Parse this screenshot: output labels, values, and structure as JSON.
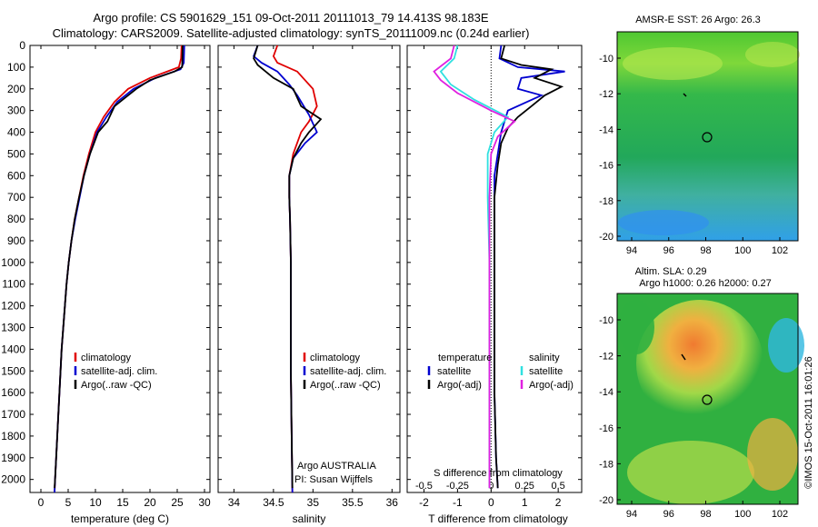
{
  "title_line1": "Argo profile: CS 5901629_151 09-Oct-2011 20111013_79 14.413S 98.183E",
  "title_line2": "Climatology: CARS2009. Satellite-adjusted climatology: synTS_20111009.nc (0.24d earlier)",
  "colors": {
    "climatology": "#e00000",
    "satellite": "#0000d0",
    "argo": "#000000",
    "sat_s": "#30e0e0",
    "argo_s": "#e020e0"
  },
  "chart_data": [
    {
      "type": "line",
      "name": "temperature",
      "xlabel": "temperature (deg C)",
      "ylabel": "",
      "xlim": [
        -2,
        31
      ],
      "ylim": [
        2060,
        0
      ],
      "xticks": [
        0,
        5,
        10,
        15,
        20,
        25,
        30
      ],
      "yticks": [
        0,
        100,
        200,
        300,
        400,
        500,
        600,
        700,
        800,
        900,
        1000,
        1100,
        1200,
        1300,
        1400,
        1500,
        1600,
        1700,
        1800,
        1900,
        2000
      ],
      "legend": [
        "climatology",
        "satellite-adj. clim.",
        "Argo(..raw -QC)"
      ],
      "series": [
        {
          "name": "climatology",
          "color": "#e00000",
          "points": [
            [
              25.8,
              0
            ],
            [
              25.7,
              60
            ],
            [
              25.3,
              100
            ],
            [
              20,
              150
            ],
            [
              16,
              200
            ],
            [
              13.5,
              260
            ],
            [
              11.5,
              330
            ],
            [
              10,
              400
            ],
            [
              8.8,
              500
            ],
            [
              7.8,
              600
            ],
            [
              7,
              700
            ],
            [
              6.2,
              800
            ],
            [
              5.6,
              900
            ],
            [
              5.1,
              1000
            ],
            [
              4.7,
              1100
            ],
            [
              4.4,
              1200
            ],
            [
              4.1,
              1300
            ],
            [
              3.8,
              1400
            ],
            [
              3.6,
              1500
            ],
            [
              3.4,
              1600
            ],
            [
              3.2,
              1700
            ],
            [
              3.0,
              1800
            ],
            [
              2.8,
              1900
            ],
            [
              2.6,
              2000
            ],
            [
              2.5,
              2060
            ]
          ]
        },
        {
          "name": "satellite-adj. clim.",
          "color": "#0000d0",
          "points": [
            [
              26.3,
              0
            ],
            [
              26.2,
              80
            ],
            [
              25.6,
              110
            ],
            [
              21,
              150
            ],
            [
              17,
              200
            ],
            [
              14,
              260
            ],
            [
              12,
              330
            ],
            [
              10.3,
              400
            ],
            [
              9,
              500
            ],
            [
              7.9,
              600
            ],
            [
              7.1,
              700
            ],
            [
              6.3,
              800
            ],
            [
              5.6,
              900
            ],
            [
              5.1,
              1000
            ],
            [
              4.7,
              1100
            ],
            [
              4.4,
              1200
            ],
            [
              4.1,
              1300
            ],
            [
              3.8,
              1400
            ],
            [
              3.6,
              1500
            ],
            [
              3.4,
              1600
            ],
            [
              3.2,
              1700
            ],
            [
              3.0,
              1800
            ],
            [
              2.8,
              1900
            ],
            [
              2.6,
              2000
            ],
            [
              2.5,
              2060
            ]
          ]
        },
        {
          "name": "Argo(..raw -QC)",
          "color": "#000000",
          "points": [
            [
              26.0,
              0
            ],
            [
              25.9,
              100
            ],
            [
              24.5,
              120
            ],
            [
              20,
              160
            ],
            [
              17.5,
              200
            ],
            [
              15,
              250
            ],
            [
              13.5,
              280
            ],
            [
              12.2,
              350
            ],
            [
              10.5,
              400
            ],
            [
              9,
              500
            ],
            [
              7.9,
              600
            ],
            [
              7,
              700
            ],
            [
              6.2,
              800
            ],
            [
              5.6,
              900
            ],
            [
              5.1,
              1000
            ],
            [
              4.7,
              1100
            ],
            [
              4.4,
              1200
            ],
            [
              4.1,
              1300
            ],
            [
              3.8,
              1400
            ],
            [
              3.6,
              1500
            ],
            [
              3.4,
              1600
            ],
            [
              3.2,
              1700
            ],
            [
              3.0,
              1800
            ],
            [
              2.8,
              1900
            ],
            [
              2.6,
              2000
            ],
            [
              2.5,
              2040
            ]
          ]
        }
      ]
    },
    {
      "type": "line",
      "name": "salinity",
      "xlabel": "salinity",
      "xlim": [
        33.8,
        36.1
      ],
      "ylim": [
        2060,
        0
      ],
      "xticks": [
        34,
        34.5,
        35,
        35.5,
        36
      ],
      "legend": [
        "climatology",
        "satellite-adj. clim.",
        "Argo(..raw -QC)"
      ],
      "annotation": [
        "Argo AUSTRALIA",
        "PI: Susan Wijffels"
      ],
      "series": [
        {
          "name": "climatology",
          "color": "#e00000",
          "points": [
            [
              34.55,
              0
            ],
            [
              34.5,
              50
            ],
            [
              34.55,
              80
            ],
            [
              34.8,
              120
            ],
            [
              35.0,
              200
            ],
            [
              35.05,
              280
            ],
            [
              34.95,
              350
            ],
            [
              34.85,
              400
            ],
            [
              34.75,
              500
            ],
            [
              34.7,
              600
            ],
            [
              34.7,
              700
            ],
            [
              34.71,
              800
            ],
            [
              34.72,
              1000
            ],
            [
              34.72,
              1200
            ],
            [
              34.72,
              1500
            ],
            [
              34.73,
              1800
            ],
            [
              34.74,
              2060
            ]
          ]
        },
        {
          "name": "satellite-adj. clim.",
          "color": "#0000d0",
          "points": [
            [
              34.3,
              0
            ],
            [
              34.25,
              50
            ],
            [
              34.35,
              80
            ],
            [
              34.55,
              120
            ],
            [
              34.7,
              180
            ],
            [
              34.8,
              230
            ],
            [
              34.95,
              320
            ],
            [
              35.05,
              400
            ],
            [
              34.9,
              450
            ],
            [
              34.75,
              520
            ],
            [
              34.7,
              600
            ],
            [
              34.7,
              700
            ],
            [
              34.71,
              800
            ],
            [
              34.72,
              1000
            ],
            [
              34.72,
              1200
            ],
            [
              34.72,
              1500
            ],
            [
              34.73,
              1800
            ],
            [
              34.74,
              2060
            ]
          ]
        },
        {
          "name": "Argo(..raw -QC)",
          "color": "#000000",
          "points": [
            [
              34.3,
              0
            ],
            [
              34.25,
              60
            ],
            [
              34.3,
              90
            ],
            [
              34.5,
              150
            ],
            [
              34.75,
              200
            ],
            [
              34.85,
              280
            ],
            [
              35.1,
              340
            ],
            [
              34.95,
              400
            ],
            [
              34.85,
              450
            ],
            [
              34.75,
              520
            ],
            [
              34.7,
              600
            ],
            [
              34.7,
              700
            ],
            [
              34.71,
              800
            ],
            [
              34.72,
              1000
            ],
            [
              34.72,
              1200
            ],
            [
              34.72,
              1500
            ],
            [
              34.73,
              1800
            ],
            [
              34.74,
              2040
            ]
          ]
        }
      ]
    },
    {
      "type": "line",
      "name": "differences",
      "xlabel": "T difference from climatology",
      "xlabel_top": "S difference from climatology",
      "xlim": [
        -2.5,
        2.7
      ],
      "ylim": [
        2060,
        0
      ],
      "xticks": [
        -2,
        -1,
        0,
        1,
        2
      ],
      "xticks_top": [
        {
          "label": "-0.5",
          "t": -2
        },
        {
          "label": "-0.25",
          "t": -1
        },
        {
          "label": "0",
          "t": 0
        },
        {
          "label": "0.25",
          "t": 1
        },
        {
          "label": "0.5",
          "t": 2
        }
      ],
      "legend_left": {
        "header": "temperature",
        "items": [
          "satellite",
          "Argo(-adj)"
        ]
      },
      "legend_right": {
        "header": "salinity",
        "items": [
          "satellite",
          "Argo(-adj)"
        ]
      },
      "series": [
        {
          "name": "T satellite",
          "color": "#0000d0",
          "points": [
            [
              0.3,
              0
            ],
            [
              0.25,
              60
            ],
            [
              0.8,
              100
            ],
            [
              2.2,
              120
            ],
            [
              0.9,
              150
            ],
            [
              0.8,
              200
            ],
            [
              1.5,
              230
            ],
            [
              0.5,
              300
            ],
            [
              0.3,
              400
            ],
            [
              0.2,
              500
            ],
            [
              0.1,
              600
            ],
            [
              0.1,
              800
            ],
            [
              0.1,
              1000
            ],
            [
              0.1,
              1300
            ],
            [
              0.1,
              1600
            ],
            [
              0.15,
              1900
            ],
            [
              0.2,
              2040
            ]
          ]
        },
        {
          "name": "T Argo(-adj)",
          "color": "#000000",
          "points": [
            [
              0.4,
              0
            ],
            [
              0.3,
              60
            ],
            [
              0.9,
              90
            ],
            [
              1.8,
              110
            ],
            [
              1.3,
              150
            ],
            [
              2.1,
              190
            ],
            [
              1.6,
              230
            ],
            [
              1.2,
              280
            ],
            [
              0.8,
              330
            ],
            [
              0.5,
              380
            ],
            [
              0.3,
              450
            ],
            [
              0.2,
              550
            ],
            [
              0.1,
              700
            ],
            [
              0.1,
              1000
            ],
            [
              0.1,
              1300
            ],
            [
              0.1,
              1600
            ],
            [
              0.15,
              1900
            ],
            [
              0.2,
              2040
            ]
          ]
        },
        {
          "name": "S satellite",
          "color": "#30e0e0",
          "points": [
            [
              -1.0,
              0
            ],
            [
              -1.1,
              60
            ],
            [
              -1.5,
              120
            ],
            [
              -1.2,
              180
            ],
            [
              -0.5,
              250
            ],
            [
              0.5,
              330
            ],
            [
              0.1,
              400
            ],
            [
              -0.1,
              500
            ],
            [
              -0.1,
              700
            ],
            [
              -0.05,
              1000
            ],
            [
              -0.05,
              1500
            ],
            [
              -0.05,
              2040
            ]
          ]
        },
        {
          "name": "S Argo(-adj)",
          "color": "#e020e0",
          "points": [
            [
              -1.1,
              0
            ],
            [
              -1.2,
              60
            ],
            [
              -1.7,
              120
            ],
            [
              -1.5,
              160
            ],
            [
              -1.0,
              220
            ],
            [
              0.0,
              300
            ],
            [
              0.7,
              350
            ],
            [
              0.2,
              420
            ],
            [
              0.0,
              500
            ],
            [
              -0.05,
              700
            ],
            [
              -0.05,
              1000
            ],
            [
              -0.05,
              1500
            ],
            [
              -0.05,
              2040
            ]
          ]
        }
      ]
    }
  ],
  "map1": {
    "title": "AMSR-E SST: 26 Argo: 26.3",
    "xticks": [
      "94",
      "96",
      "98",
      "100",
      "102"
    ],
    "yticks": [
      "-10",
      "-12",
      "-14",
      "-16",
      "-18",
      "-20"
    ]
  },
  "map2": {
    "title_line1": "Altim. SLA: 0.29",
    "title_line2": "Argo h1000: 0.26 h2000: 0.27",
    "xticks": [
      "94",
      "96",
      "98",
      "100",
      "102"
    ],
    "yticks": [
      "-10",
      "-12",
      "-14",
      "-16",
      "-18",
      "-20"
    ]
  },
  "credit": "©IMOS 15-Oct-2011 16:01:26"
}
